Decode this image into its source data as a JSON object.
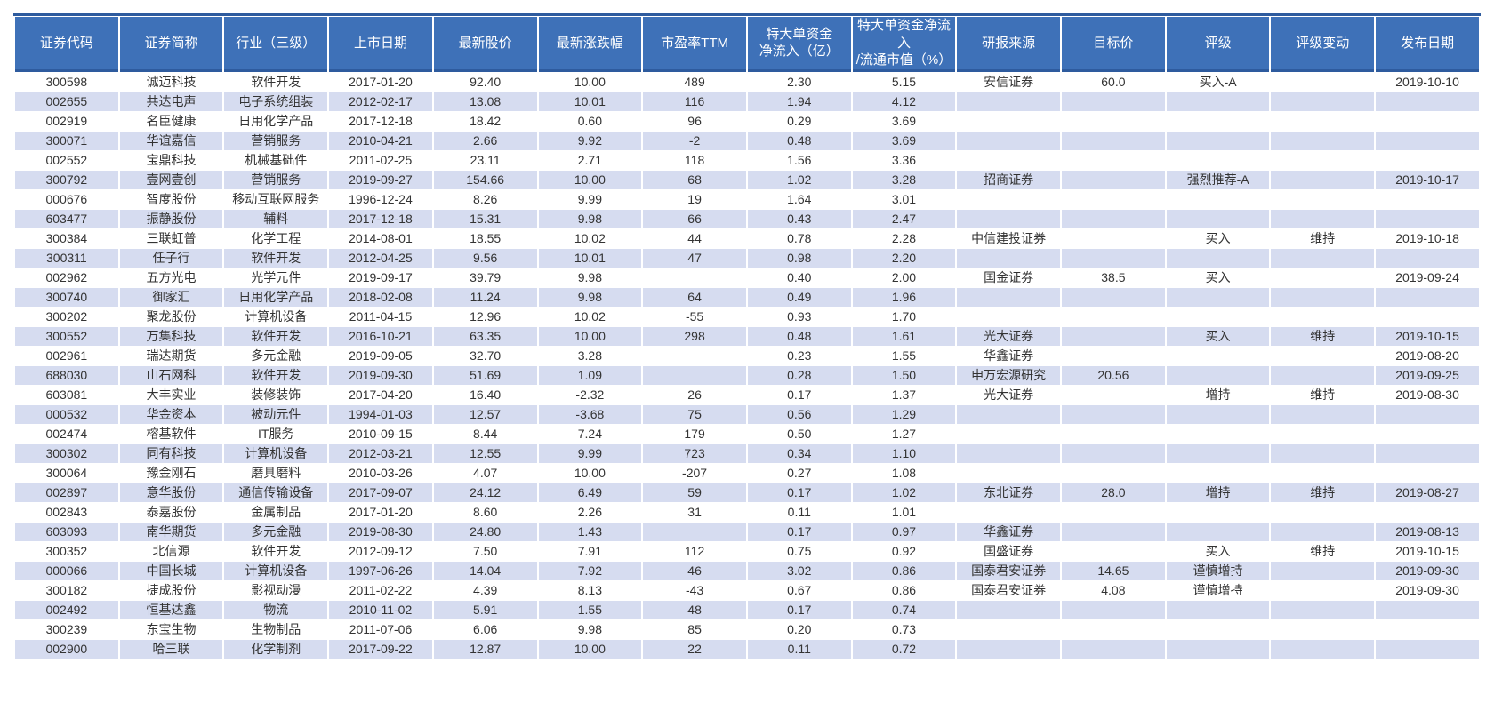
{
  "colors": {
    "header_background": "#3E71B8",
    "header_accent_line": "#2E5B9E",
    "header_text": "#FFFFFF",
    "row_stripe": "#D6DCF0",
    "row_text": "#333333",
    "row_background": "#FFFFFF"
  },
  "table": {
    "columns": [
      "证券代码",
      "证券简称",
      "行业（三级）",
      "上市日期",
      "最新股价",
      "最新涨跌幅",
      "市盈率TTM",
      "特大单资金\n净流入（亿）",
      "特大单资金净流入\n/流通市值（%）",
      "研报来源",
      "目标价",
      "评级",
      "评级变动",
      "发布日期"
    ],
    "rows": [
      [
        "300598",
        "诚迈科技",
        "软件开发",
        "2017-01-20",
        "92.40",
        "10.00",
        "489",
        "2.30",
        "5.15",
        "安信证券",
        "60.0",
        "买入-A",
        "",
        "2019-10-10"
      ],
      [
        "002655",
        "共达电声",
        "电子系统组装",
        "2012-02-17",
        "13.08",
        "10.01",
        "116",
        "1.94",
        "4.12",
        "",
        "",
        "",
        "",
        ""
      ],
      [
        "002919",
        "名臣健康",
        "日用化学产品",
        "2017-12-18",
        "18.42",
        "0.60",
        "96",
        "0.29",
        "3.69",
        "",
        "",
        "",
        "",
        ""
      ],
      [
        "300071",
        "华谊嘉信",
        "营销服务",
        "2010-04-21",
        "2.66",
        "9.92",
        "-2",
        "0.48",
        "3.69",
        "",
        "",
        "",
        "",
        ""
      ],
      [
        "002552",
        "宝鼎科技",
        "机械基础件",
        "2011-02-25",
        "23.11",
        "2.71",
        "118",
        "1.56",
        "3.36",
        "",
        "",
        "",
        "",
        ""
      ],
      [
        "300792",
        "壹网壹创",
        "营销服务",
        "2019-09-27",
        "154.66",
        "10.00",
        "68",
        "1.02",
        "3.28",
        "招商证券",
        "",
        "强烈推荐-A",
        "",
        "2019-10-17"
      ],
      [
        "000676",
        "智度股份",
        "移动互联网服务",
        "1996-12-24",
        "8.26",
        "9.99",
        "19",
        "1.64",
        "3.01",
        "",
        "",
        "",
        "",
        ""
      ],
      [
        "603477",
        "振静股份",
        "辅料",
        "2017-12-18",
        "15.31",
        "9.98",
        "66",
        "0.43",
        "2.47",
        "",
        "",
        "",
        "",
        ""
      ],
      [
        "300384",
        "三联虹普",
        "化学工程",
        "2014-08-01",
        "18.55",
        "10.02",
        "44",
        "0.78",
        "2.28",
        "中信建投证券",
        "",
        "买入",
        "维持",
        "2019-10-18"
      ],
      [
        "300311",
        "任子行",
        "软件开发",
        "2012-04-25",
        "9.56",
        "10.01",
        "47",
        "0.98",
        "2.20",
        "",
        "",
        "",
        "",
        ""
      ],
      [
        "002962",
        "五方光电",
        "光学元件",
        "2019-09-17",
        "39.79",
        "9.98",
        "",
        "0.40",
        "2.00",
        "国金证券",
        "38.5",
        "买入",
        "",
        "2019-09-24"
      ],
      [
        "300740",
        "御家汇",
        "日用化学产品",
        "2018-02-08",
        "11.24",
        "9.98",
        "64",
        "0.49",
        "1.96",
        "",
        "",
        "",
        "",
        ""
      ],
      [
        "300202",
        "聚龙股份",
        "计算机设备",
        "2011-04-15",
        "12.96",
        "10.02",
        "-55",
        "0.93",
        "1.70",
        "",
        "",
        "",
        "",
        ""
      ],
      [
        "300552",
        "万集科技",
        "软件开发",
        "2016-10-21",
        "63.35",
        "10.00",
        "298",
        "0.48",
        "1.61",
        "光大证券",
        "",
        "买入",
        "维持",
        "2019-10-15"
      ],
      [
        "002961",
        "瑞达期货",
        "多元金融",
        "2019-09-05",
        "32.70",
        "3.28",
        "",
        "0.23",
        "1.55",
        "华鑫证券",
        "",
        "",
        "",
        "2019-08-20"
      ],
      [
        "688030",
        "山石网科",
        "软件开发",
        "2019-09-30",
        "51.69",
        "1.09",
        "",
        "0.28",
        "1.50",
        "申万宏源研究",
        "20.56",
        "",
        "",
        "2019-09-25"
      ],
      [
        "603081",
        "大丰实业",
        "装修装饰",
        "2017-04-20",
        "16.40",
        "-2.32",
        "26",
        "0.17",
        "1.37",
        "光大证券",
        "",
        "增持",
        "维持",
        "2019-08-30"
      ],
      [
        "000532",
        "华金资本",
        "被动元件",
        "1994-01-03",
        "12.57",
        "-3.68",
        "75",
        "0.56",
        "1.29",
        "",
        "",
        "",
        "",
        ""
      ],
      [
        "002474",
        "榕基软件",
        "IT服务",
        "2010-09-15",
        "8.44",
        "7.24",
        "179",
        "0.50",
        "1.27",
        "",
        "",
        "",
        "",
        ""
      ],
      [
        "300302",
        "同有科技",
        "计算机设备",
        "2012-03-21",
        "12.55",
        "9.99",
        "723",
        "0.34",
        "1.10",
        "",
        "",
        "",
        "",
        ""
      ],
      [
        "300064",
        "豫金刚石",
        "磨具磨料",
        "2010-03-26",
        "4.07",
        "10.00",
        "-207",
        "0.27",
        "1.08",
        "",
        "",
        "",
        "",
        ""
      ],
      [
        "002897",
        "意华股份",
        "通信传输设备",
        "2017-09-07",
        "24.12",
        "6.49",
        "59",
        "0.17",
        "1.02",
        "东北证券",
        "28.0",
        "增持",
        "维持",
        "2019-08-27"
      ],
      [
        "002843",
        "泰嘉股份",
        "金属制品",
        "2017-01-20",
        "8.60",
        "2.26",
        "31",
        "0.11",
        "1.01",
        "",
        "",
        "",
        "",
        ""
      ],
      [
        "603093",
        "南华期货",
        "多元金融",
        "2019-08-30",
        "24.80",
        "1.43",
        "",
        "0.17",
        "0.97",
        "华鑫证券",
        "",
        "",
        "",
        "2019-08-13"
      ],
      [
        "300352",
        "北信源",
        "软件开发",
        "2012-09-12",
        "7.50",
        "7.91",
        "112",
        "0.75",
        "0.92",
        "国盛证券",
        "",
        "买入",
        "维持",
        "2019-10-15"
      ],
      [
        "000066",
        "中国长城",
        "计算机设备",
        "1997-06-26",
        "14.04",
        "7.92",
        "46",
        "3.02",
        "0.86",
        "国泰君安证券",
        "14.65",
        "谨慎增持",
        "",
        "2019-09-30"
      ],
      [
        "300182",
        "捷成股份",
        "影视动漫",
        "2011-02-22",
        "4.39",
        "8.13",
        "-43",
        "0.67",
        "0.86",
        "国泰君安证券",
        "4.08",
        "谨慎增持",
        "",
        "2019-09-30"
      ],
      [
        "002492",
        "恒基达鑫",
        "物流",
        "2010-11-02",
        "5.91",
        "1.55",
        "48",
        "0.17",
        "0.74",
        "",
        "",
        "",
        "",
        ""
      ],
      [
        "300239",
        "东宝生物",
        "生物制品",
        "2011-07-06",
        "6.06",
        "9.98",
        "85",
        "0.20",
        "0.73",
        "",
        "",
        "",
        "",
        ""
      ],
      [
        "002900",
        "哈三联",
        "化学制剂",
        "2017-09-22",
        "12.87",
        "10.00",
        "22",
        "0.11",
        "0.72",
        "",
        "",
        "",
        "",
        ""
      ]
    ]
  }
}
